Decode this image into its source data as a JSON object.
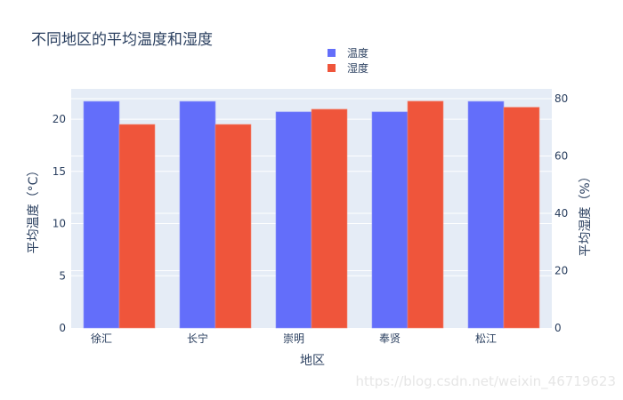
{
  "chart_data": {
    "type": "bar",
    "title": "不同地区的平均温度和湿度",
    "categories": [
      "徐汇",
      "长宁",
      "崇明",
      "奉贤",
      "松江"
    ],
    "series": [
      {
        "name": "温度",
        "axis": "left",
        "color": "#636efa",
        "values": [
          21.7,
          21.7,
          20.7,
          20.7,
          21.7
        ]
      },
      {
        "name": "湿度",
        "axis": "right",
        "color": "#ef553b",
        "values": [
          71.0,
          71.0,
          76.3,
          79.1,
          77.0
        ]
      }
    ],
    "xlabel": "地区",
    "ylabel": "平均温度（°C）",
    "ylabel_right": "平均湿度（%）",
    "ylim": [
      0,
      22.9
    ],
    "ylim_right": [
      0,
      83.4
    ],
    "yticks": [
      0,
      5,
      10,
      15,
      20
    ],
    "yticks_right": [
      0,
      20,
      40,
      60,
      80
    ],
    "grid": true,
    "legend_position": "top-center"
  },
  "legend": [
    {
      "label": "温度",
      "color": "#636efa"
    },
    {
      "label": "湿度",
      "color": "#ef553b"
    }
  ],
  "watermark": "https://blog.csdn.net/weixin_46719623"
}
